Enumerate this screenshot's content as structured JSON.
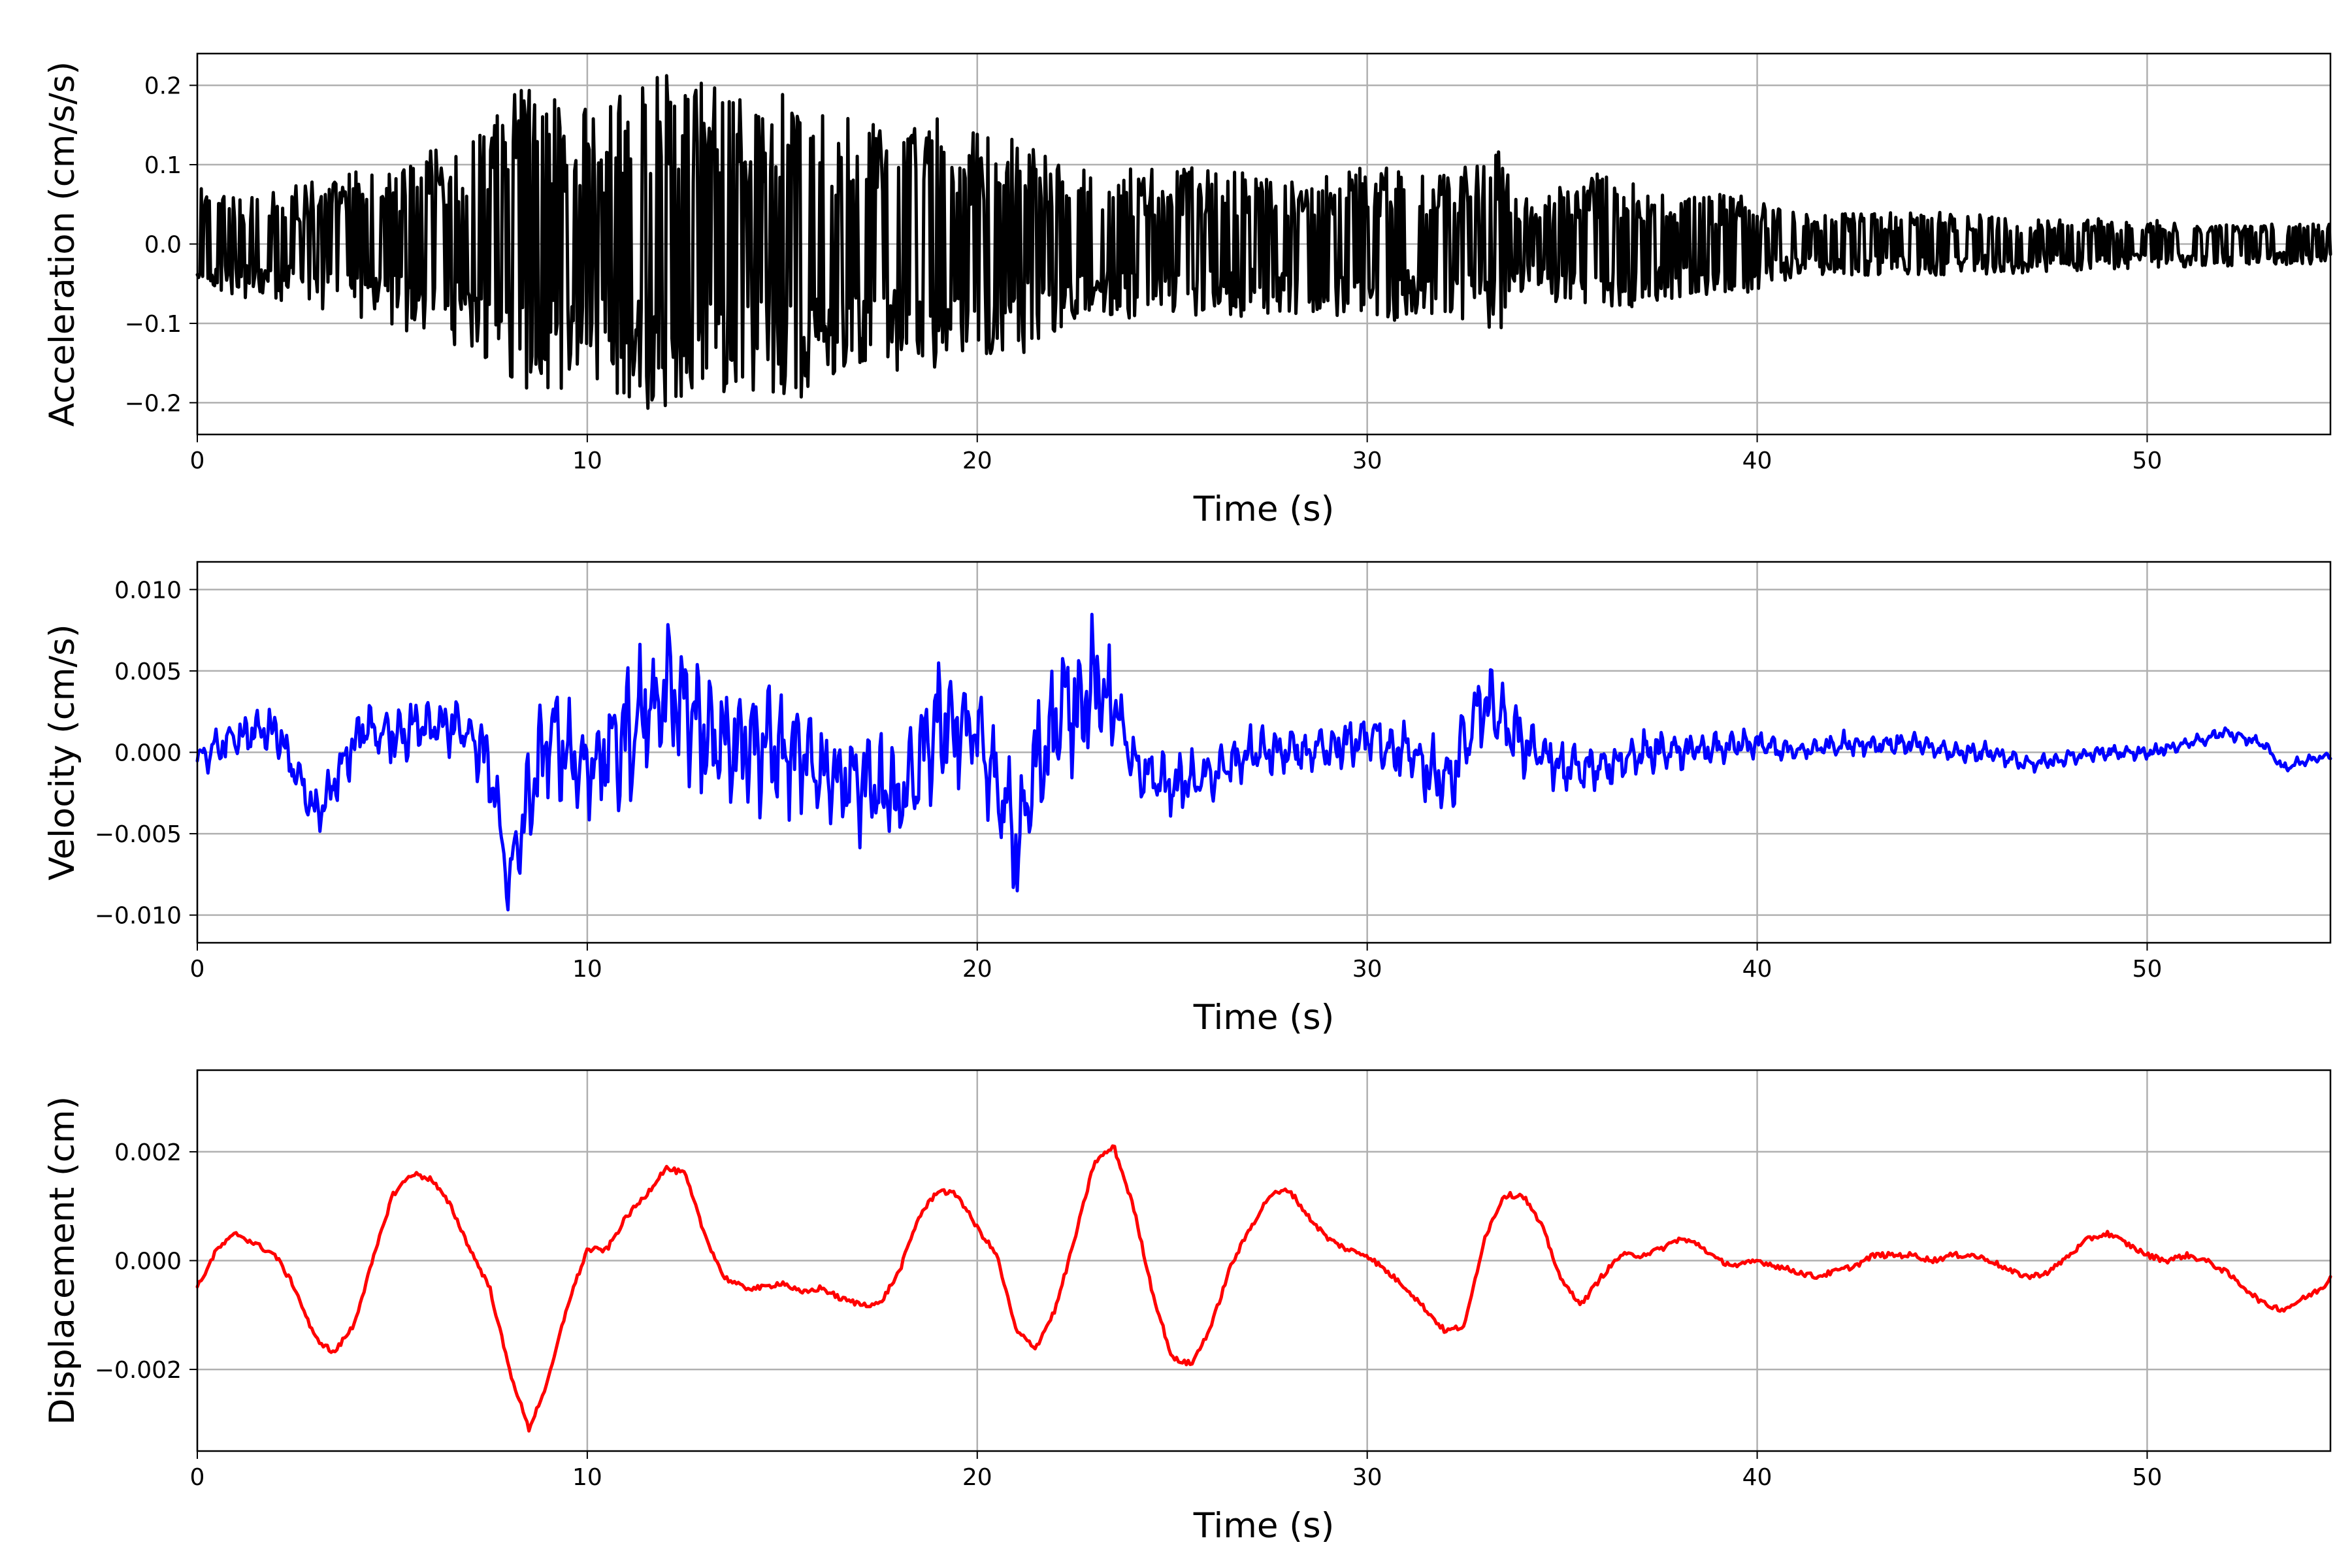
{
  "chart_data": [
    {
      "type": "line",
      "xlabel": "Time (s)",
      "ylabel": "Acceleration (cm/s/s)",
      "xlim": [
        0,
        54.7
      ],
      "ylim": [
        -0.24,
        0.24
      ],
      "xticks": [
        0,
        10,
        20,
        30,
        40,
        50
      ],
      "xtick_labels": [
        "0",
        "10",
        "20",
        "30",
        "40",
        "50"
      ],
      "yticks": [
        -0.2,
        -0.1,
        0.0,
        0.1,
        0.2
      ],
      "ytick_labels": [
        "−0.2",
        "−0.1",
        "0.0",
        "0.1",
        "0.2"
      ],
      "grid": true,
      "color": "#000000",
      "envelope": [
        [
          0,
          0.07
        ],
        [
          2,
          0.07
        ],
        [
          4,
          0.09
        ],
        [
          6,
          0.12
        ],
        [
          7.5,
          0.15
        ],
        [
          8.5,
          0.22
        ],
        [
          10,
          0.17
        ],
        [
          12,
          0.22
        ],
        [
          14,
          0.19
        ],
        [
          15.3,
          0.2
        ],
        [
          17,
          0.15
        ],
        [
          18.3,
          0.17
        ],
        [
          20,
          0.14
        ],
        [
          21.2,
          0.14
        ],
        [
          23,
          0.09
        ],
        [
          25,
          0.1
        ],
        [
          27,
          0.09
        ],
        [
          29,
          0.09
        ],
        [
          30,
          0.1
        ],
        [
          32,
          0.09
        ],
        [
          33.5,
          0.12
        ],
        [
          34,
          0.06
        ],
        [
          36,
          0.09
        ],
        [
          38,
          0.07
        ],
        [
          40,
          0.06
        ],
        [
          41,
          0.04
        ],
        [
          45,
          0.04
        ],
        [
          50,
          0.03
        ],
        [
          54.7,
          0.025
        ]
      ],
      "samples": 1600
    },
    {
      "type": "line",
      "xlabel": "Time (s)",
      "ylabel": "Velocity (cm/s)",
      "xlim": [
        0,
        54.7
      ],
      "ylim": [
        -0.0117,
        0.0117
      ],
      "xticks": [
        0,
        10,
        20,
        30,
        40,
        50
      ],
      "xtick_labels": [
        "0",
        "10",
        "20",
        "30",
        "40",
        "50"
      ],
      "yticks": [
        -0.01,
        -0.005,
        0.0,
        0.005,
        0.01
      ],
      "ytick_labels": [
        "−0.010",
        "−0.005",
        "0.000",
        "0.005",
        "0.010"
      ],
      "grid": true,
      "color": "#0000ff",
      "baseline": [
        [
          0,
          -0.0005
        ],
        [
          1,
          0.001
        ],
        [
          2,
          0.0015
        ],
        [
          2.5,
          -0.001
        ],
        [
          3,
          -0.004
        ],
        [
          3.5,
          -0.002
        ],
        [
          4.2,
          0.0015
        ],
        [
          5,
          0.001
        ],
        [
          6,
          0.002
        ],
        [
          7,
          0.001
        ],
        [
          7.5,
          -0.001
        ],
        [
          8,
          -0.008
        ],
        [
          8.5,
          -0.003
        ],
        [
          9,
          0.001
        ],
        [
          10,
          -0.001
        ],
        [
          11,
          0.001
        ],
        [
          12,
          0.004
        ],
        [
          13,
          0.001
        ],
        [
          14,
          0.001
        ],
        [
          15,
          0.0
        ],
        [
          16,
          -0.001
        ],
        [
          17,
          -0.002
        ],
        [
          18,
          -0.003
        ],
        [
          19,
          0.002
        ],
        [
          20,
          0.001
        ],
        [
          20.5,
          -0.002
        ],
        [
          21,
          -0.006
        ],
        [
          21.5,
          -0.001
        ],
        [
          22,
          0.002
        ],
        [
          23,
          0.004
        ],
        [
          23.5,
          0.003
        ],
        [
          24,
          -0.001
        ],
        [
          25,
          -0.002
        ],
        [
          26,
          -0.0015
        ],
        [
          27,
          0.0
        ],
        [
          28,
          0.0
        ],
        [
          29,
          0.0
        ],
        [
          30,
          0.001
        ],
        [
          31,
          0.0
        ],
        [
          32,
          -0.002
        ],
        [
          33,
          0.003
        ],
        [
          33.8,
          0.001
        ],
        [
          35,
          -0.001
        ],
        [
          36,
          -0.001
        ],
        [
          37,
          0.0
        ],
        [
          38,
          0.0
        ],
        [
          40,
          0.0005
        ],
        [
          41,
          0.0
        ],
        [
          42,
          0.0005
        ],
        [
          44,
          0.0005
        ],
        [
          45,
          0.0
        ],
        [
          46,
          0.0
        ],
        [
          47,
          -0.0008
        ],
        [
          48,
          -0.0003
        ],
        [
          49,
          0.0
        ],
        [
          50,
          0.0
        ],
        [
          51,
          0.0005
        ],
        [
          52,
          0.0012
        ],
        [
          53,
          0.0005
        ],
        [
          53.5,
          -0.001
        ],
        [
          54,
          -0.0005
        ],
        [
          54.7,
          -0.0002
        ]
      ],
      "envelope": [
        [
          0,
          0.001
        ],
        [
          7,
          0.002
        ],
        [
          8,
          0.003
        ],
        [
          10,
          0.0035
        ],
        [
          12,
          0.005
        ],
        [
          14,
          0.004
        ],
        [
          16,
          0.003
        ],
        [
          19,
          0.004
        ],
        [
          21,
          0.004
        ],
        [
          23,
          0.004
        ],
        [
          24,
          0.002
        ],
        [
          26,
          0.0015
        ],
        [
          30,
          0.0015
        ],
        [
          33,
          0.003
        ],
        [
          34,
          0.002
        ],
        [
          36,
          0.0015
        ],
        [
          40,
          0.0008
        ],
        [
          45,
          0.0006
        ],
        [
          50,
          0.0004
        ],
        [
          54.7,
          0.0003
        ]
      ],
      "samples": 1600
    },
    {
      "type": "line",
      "xlabel": "Time (s)",
      "ylabel": "Displacement (cm)",
      "xlim": [
        0,
        54.7
      ],
      "ylim": [
        -0.0035,
        0.0035
      ],
      "xticks": [
        0,
        10,
        20,
        30,
        40,
        50
      ],
      "xtick_labels": [
        "0",
        "10",
        "20",
        "30",
        "40",
        "50"
      ],
      "yticks": [
        -0.002,
        0.0,
        0.002
      ],
      "ytick_labels": [
        "−0.002",
        "0.000",
        "0.002"
      ],
      "grid": true,
      "color": "#ff0000",
      "x": [
        0,
        0.5,
        1,
        1.5,
        2,
        2.5,
        3,
        3.5,
        4,
        4.5,
        5,
        5.5,
        6,
        6.5,
        7,
        7.5,
        8,
        8.5,
        9,
        9.5,
        10,
        10.5,
        11,
        11.5,
        12,
        12.5,
        13,
        13.5,
        14,
        14.5,
        15,
        15.5,
        16,
        16.5,
        17,
        17.5,
        18,
        18.5,
        19,
        19.5,
        20,
        20.5,
        21,
        21.5,
        22,
        22.5,
        23,
        23.5,
        24,
        24.5,
        25,
        25.5,
        26,
        26.5,
        27,
        27.5,
        28,
        28.5,
        29,
        29.5,
        30,
        30.5,
        31,
        31.5,
        32,
        32.5,
        33,
        33.5,
        34,
        34.5,
        35,
        35.5,
        36,
        36.5,
        37,
        37.5,
        38,
        38.5,
        39,
        39.5,
        40,
        40.5,
        41,
        41.5,
        42,
        42.5,
        43,
        43.5,
        44,
        44.5,
        45,
        45.5,
        46,
        46.5,
        47,
        47.5,
        48,
        48.5,
        49,
        49.5,
        50,
        50.5,
        51,
        51.5,
        52,
        52.5,
        53,
        53.5,
        54,
        54.5,
        54.7
      ],
      "y": [
        -0.0005,
        0.0002,
        0.0005,
        0.0003,
        0.0001,
        -0.0005,
        -0.0014,
        -0.0017,
        -0.0012,
        0.0,
        0.0012,
        0.0016,
        0.0015,
        0.001,
        0.0002,
        -0.0005,
        -0.002,
        -0.0031,
        -0.0022,
        -0.0008,
        0.0002,
        0.0002,
        0.0008,
        0.0012,
        0.0017,
        0.0016,
        0.0005,
        -0.0003,
        -0.0005,
        -0.0005,
        -0.0004,
        -0.0006,
        -0.0005,
        -0.0007,
        -0.0008,
        -0.0008,
        -0.0002,
        0.0008,
        0.0013,
        0.0012,
        0.0006,
        0.0001,
        -0.0013,
        -0.0016,
        -0.0009,
        0.0004,
        0.0018,
        0.0021,
        0.001,
        -0.0006,
        -0.0018,
        -0.0019,
        -0.0012,
        -0.0001,
        0.0006,
        0.0012,
        0.0013,
        0.0008,
        0.0004,
        0.0002,
        0.0001,
        -0.0002,
        -0.0005,
        -0.0009,
        -0.0013,
        -0.0012,
        0.0004,
        0.0012,
        0.0012,
        0.0006,
        -0.0004,
        -0.0008,
        -0.0003,
        0.0001,
        0.0001,
        0.0002,
        0.0004,
        0.0003,
        0.0,
        -0.0001,
        0.0,
        -0.0001,
        -0.0002,
        -0.0003,
        -0.0002,
        -0.0001,
        0.0001,
        0.0001,
        0.0001,
        0.0,
        0.0001,
        0.0001,
        0.0,
        -0.0002,
        -0.0003,
        -0.0002,
        0.0001,
        0.0004,
        0.0005,
        0.0003,
        0.0001,
        0.0,
        0.0001,
        0.0,
        -0.0002,
        -0.0005,
        -0.0008,
        -0.0009,
        -0.0007,
        -0.0005,
        -0.0003
      ],
      "detail_amplitude": 5e-05
    }
  ]
}
